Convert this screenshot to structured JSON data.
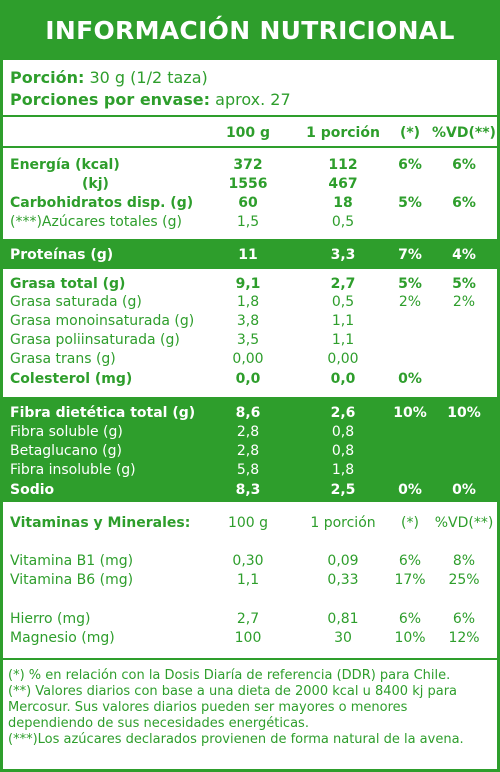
{
  "title": "INFORMACIÓN NUTRICIONAL",
  "serving": {
    "label": "Porción:",
    "value": "30 g (1/2 taza)",
    "per_package_label": "Porciones por envase:",
    "per_package_value": "aprox. 27"
  },
  "columns": {
    "c100": "100 g",
    "portion": "1 porción",
    "pct": "(*)",
    "vd": "%VD(**)"
  },
  "rows": {
    "energia": {
      "label": "Energía (kcal)",
      "v100": "372",
      "vp": "112",
      "pct": "6%",
      "vd": "6%"
    },
    "kj": {
      "label": "(kj)",
      "v100": "1556",
      "vp": "467"
    },
    "carbs": {
      "label": "Carbohidratos disp. (g)",
      "v100": "60",
      "vp": "18",
      "pct": "5%",
      "vd": "6%"
    },
    "azucares": {
      "label": "(***)Azúcares totales (g)",
      "v100": "1,5",
      "vp": "0,5"
    },
    "proteinas": {
      "label": "Proteínas (g)",
      "v100": "11",
      "vp": "3,3",
      "pct": "7%",
      "vd": "4%"
    },
    "grasa_total": {
      "label": "Grasa total (g)",
      "v100": "9,1",
      "vp": "2,7",
      "pct": "5%",
      "vd": "5%"
    },
    "grasa_sat": {
      "label": "Grasa saturada (g)",
      "v100": "1,8",
      "vp": "0,5",
      "pct": "2%",
      "vd": "2%"
    },
    "grasa_mono": {
      "label": "Grasa monoinsaturada (g)",
      "v100": "3,8",
      "vp": "1,1"
    },
    "grasa_poli": {
      "label": "Grasa poliinsaturada (g)",
      "v100": "3,5",
      "vp": "1,1"
    },
    "grasa_trans": {
      "label": "Grasa trans (g)",
      "v100": "0,00",
      "vp": "0,00"
    },
    "colesterol": {
      "label": "Colesterol (mg)",
      "v100": "0,0",
      "vp": "0,0",
      "pct": "0%"
    },
    "fibra_total": {
      "label": "Fibra dietética total (g)",
      "v100": "8,6",
      "vp": "2,6",
      "pct": "10%",
      "vd": "10%"
    },
    "fibra_sol": {
      "label": "Fibra soluble (g)",
      "v100": "2,8",
      "vp": "0,8"
    },
    "betaglucano": {
      "label": "Betaglucano (g)",
      "v100": "2,8",
      "vp": "0,8"
    },
    "fibra_insol": {
      "label": "Fibra insoluble (g)",
      "v100": "5,8",
      "vp": "1,8"
    },
    "sodio": {
      "label": "Sodio",
      "v100": "8,3",
      "vp": "2,5",
      "pct": "0%",
      "vd": "0%"
    }
  },
  "vitamins": {
    "header": "Vitaminas y Minerales:",
    "b1": {
      "label": "Vitamina B1 (mg)",
      "v100": "0,30",
      "vp": "0,09",
      "pct": "6%",
      "vd": "8%"
    },
    "b6": {
      "label": "Vitamina B6 (mg)",
      "v100": "1,1",
      "vp": "0,33",
      "pct": "17%",
      "vd": "25%"
    },
    "hierro": {
      "label": "Hierro (mg)",
      "v100": "2,7",
      "vp": "0,81",
      "pct": "6%",
      "vd": "6%"
    },
    "magnesio": {
      "label": "Magnesio (mg)",
      "v100": "100",
      "vp": "30",
      "pct": "10%",
      "vd": "12%"
    }
  },
  "footnotes": {
    "n1": "(*) % en relación con la Dosis Diaría de referencia (DDR) para Chile.",
    "n2": "(**) Valores diarios con base a una dieta de 2000 kcal u 8400 kj para Mercosur. Sus valores diarios pueden ser mayores o menores dependiendo de sus necesidades energéticas.",
    "n3": "(***)Los azúcares declarados provienen de forma natural de la avena."
  },
  "colors": {
    "brand_green": "#2e9e2c",
    "white": "#ffffff"
  }
}
